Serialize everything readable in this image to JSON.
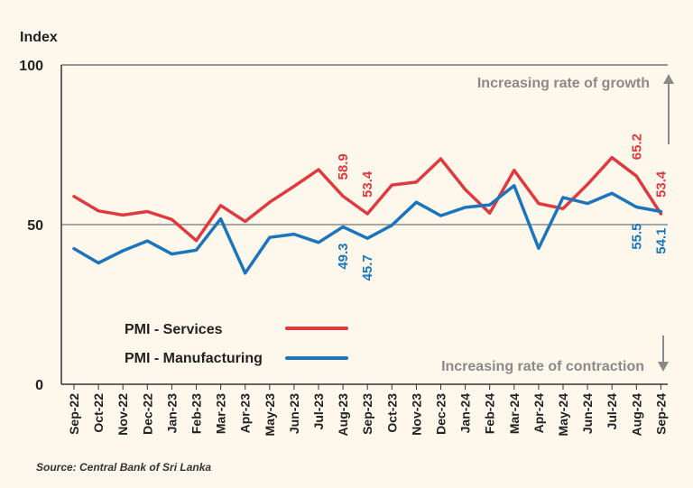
{
  "chart_data": {
    "type": "line",
    "ylabel": "Index",
    "ylim": [
      0,
      100
    ],
    "yticks": [
      0,
      50,
      100
    ],
    "reference_line": 50,
    "categories": [
      "Sep-22",
      "Oct-22",
      "Nov-22",
      "Dec-22",
      "Jan-23",
      "Feb-23",
      "Mar-23",
      "Apr-23",
      "May-23",
      "Jun-23",
      "Jul-23",
      "Aug-23",
      "Sep-23",
      "Oct-23",
      "Nov-23",
      "Dec-23",
      "Jan-24",
      "Feb-24",
      "Mar-24",
      "Apr-24",
      "May-24",
      "Jun-24",
      "Jul-24",
      "Aug-24",
      "Sep-24"
    ],
    "series": [
      {
        "name": "PMI - Services",
        "color": "#e03a3e",
        "values": [
          58.8,
          54.3,
          53.0,
          54.1,
          51.6,
          45.0,
          56.0,
          51.0,
          57.0,
          62.0,
          67.2,
          58.9,
          53.4,
          62.4,
          63.3,
          70.6,
          61.0,
          53.6,
          67.0,
          56.6,
          55.0,
          62.6,
          71.0,
          65.2,
          53.4
        ]
      },
      {
        "name": "PMI - Manufacturing",
        "color": "#1b75bc",
        "values": [
          42.5,
          38.0,
          41.8,
          44.9,
          40.8,
          42.0,
          51.8,
          34.8,
          46.0,
          47.0,
          44.4,
          49.3,
          45.7,
          49.8,
          57.0,
          52.8,
          55.4,
          56.2,
          62.2,
          42.6,
          58.5,
          56.6,
          59.8,
          55.5,
          54.1
        ]
      }
    ],
    "data_labels": [
      {
        "series": 0,
        "index": 11,
        "text": "58.9",
        "position": "above"
      },
      {
        "series": 0,
        "index": 12,
        "text": "53.4",
        "position": "above"
      },
      {
        "series": 0,
        "index": 23,
        "text": "65.2",
        "position": "above"
      },
      {
        "series": 0,
        "index": 24,
        "text": "53.4",
        "position": "above"
      },
      {
        "series": 1,
        "index": 11,
        "text": "49.3",
        "position": "below"
      },
      {
        "series": 1,
        "index": 12,
        "text": "45.7",
        "position": "below"
      },
      {
        "series": 1,
        "index": 23,
        "text": "55.5",
        "position": "below"
      },
      {
        "series": 1,
        "index": 24,
        "text": "54.1",
        "position": "below"
      }
    ],
    "annotations": {
      "growth": "Increasing rate of growth",
      "contraction": "Increasing rate of contraction"
    },
    "legend": [
      "PMI - Services",
      "PMI - Manufacturing"
    ],
    "legend_position": "lower-left",
    "source": "Source: Central Bank of Sri Lanka"
  },
  "colors": {
    "grid": "#8c8c8c",
    "axis": "#333333",
    "note": "#8a8a8a"
  }
}
